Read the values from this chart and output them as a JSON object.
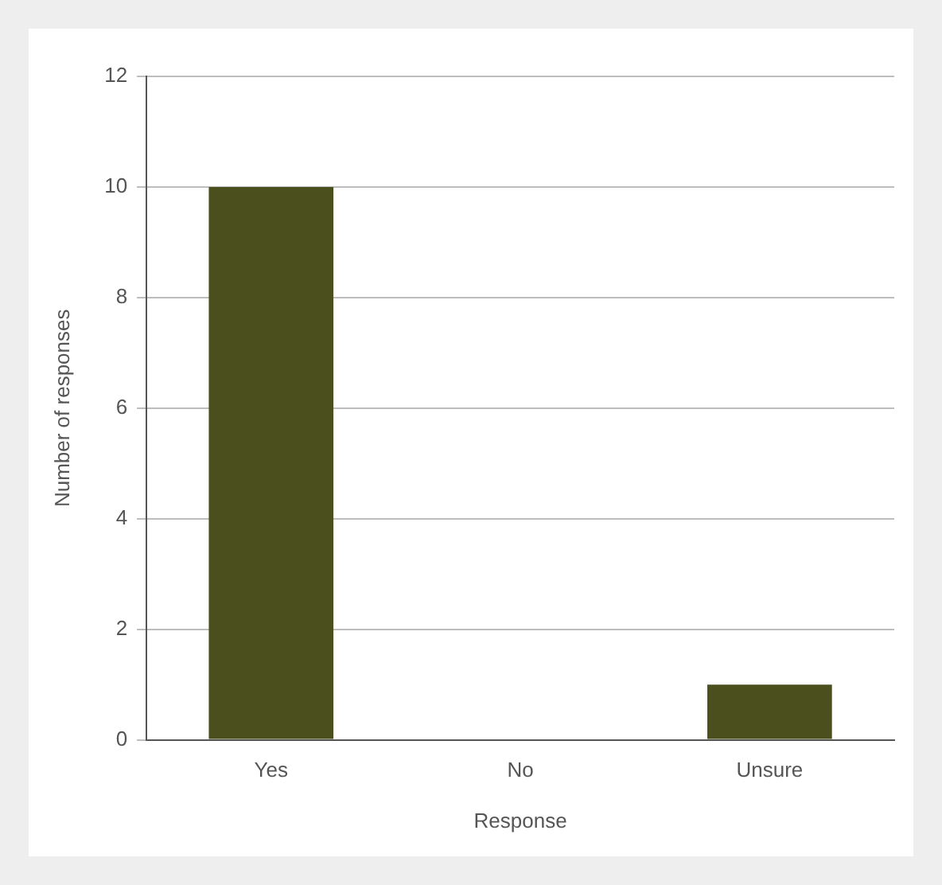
{
  "chart_data": {
    "type": "bar",
    "xlabel": "Response",
    "ylabel": "Number of responses",
    "categories": [
      "Yes",
      "No",
      "Unsure"
    ],
    "values": [
      10,
      0,
      1
    ],
    "color": "#4b4f1e",
    "ylim": [
      0,
      12
    ],
    "yticks": [
      0,
      2,
      4,
      6,
      8,
      10,
      12
    ],
    "grid": "y",
    "legend": false
  }
}
